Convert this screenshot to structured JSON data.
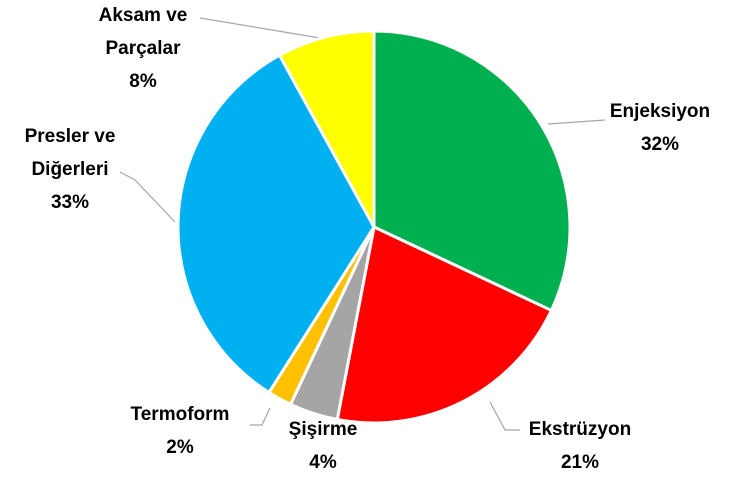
{
  "chart_data": {
    "type": "pie",
    "categories": [
      "Enjeksiyon",
      "Ekstrüzyon",
      "Şişirme",
      "Termoform",
      "Presler ve Diğerleri",
      "Aksam ve Parçalar"
    ],
    "values": [
      32,
      21,
      4,
      2,
      33,
      8
    ],
    "value_labels": [
      "32%",
      "21%",
      "4%",
      "2%",
      "33%",
      "8%"
    ],
    "colors": [
      "#00b050",
      "#ff0000",
      "#a5a5a5",
      "#ffc000",
      "#00b0f0",
      "#ffff00"
    ]
  }
}
